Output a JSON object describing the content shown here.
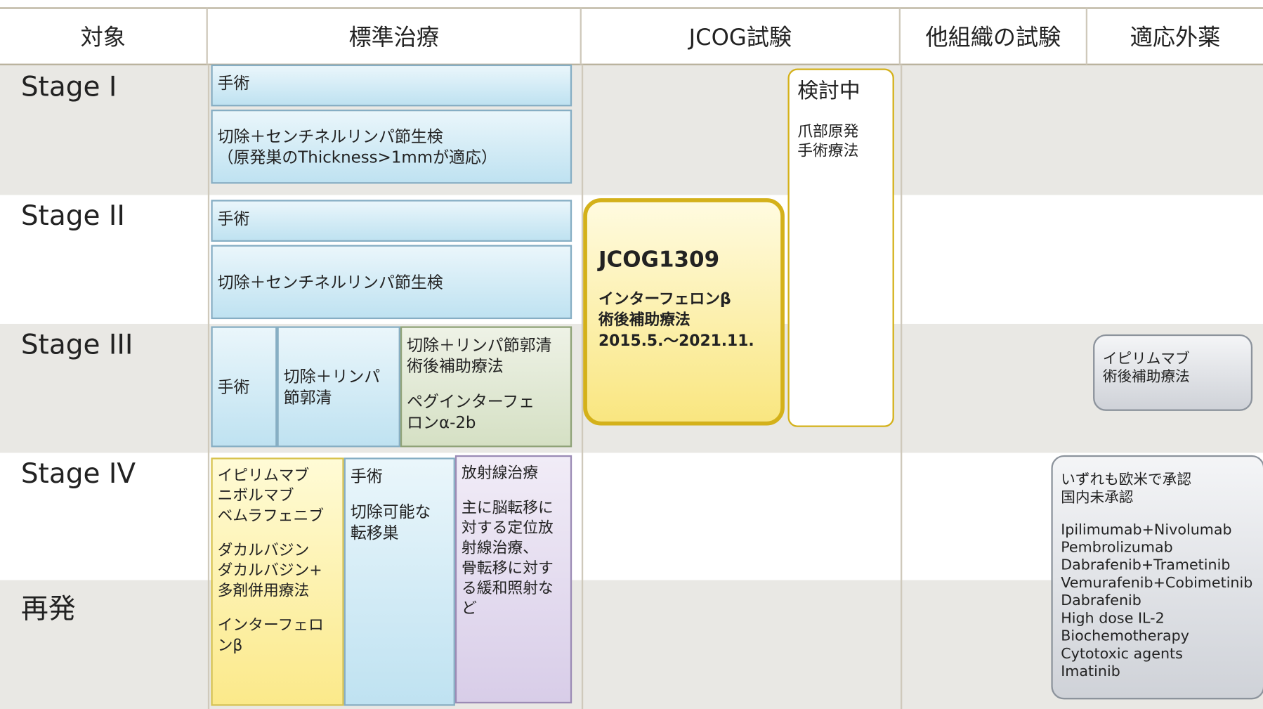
{
  "header": [
    "対象",
    "標準治療",
    "JCOG試験",
    "他組織の試験",
    "適応外薬"
  ],
  "stages": [
    "Stage I",
    "Stage II",
    "Stage III",
    "Stage IV",
    "再発"
  ],
  "boxes": [
    {
      "paragraphs": [
        [
          "手術"
        ]
      ]
    },
    {
      "paragraphs": [
        [
          "切除＋センチネルリンパ節生検",
          "（原発巣のThickness>1mmが適応）"
        ]
      ]
    },
    {
      "paragraphs": [
        [
          "手術"
        ]
      ]
    },
    {
      "paragraphs": [
        [
          "切除＋センチネルリンパ節生検"
        ]
      ]
    },
    {
      "paragraphs": [
        [
          "手術"
        ]
      ]
    },
    {
      "paragraphs": [
        [
          "切除＋リンパ",
          "節郭清"
        ]
      ]
    },
    {
      "paragraphs": [
        [
          "切除＋リンパ節郭清",
          "術後補助療法"
        ],
        [
          "ペグインターフェ",
          "ロンα-2b"
        ]
      ]
    },
    {
      "paragraphs": [
        [
          "イピリムマブ",
          "ニボルマブ",
          "ベムラフェニブ"
        ],
        [
          "ダカルバジン",
          "ダカルバジン+",
          "多剤併用療法"
        ],
        [
          "インターフェロ",
          "ンβ"
        ]
      ]
    },
    {
      "paragraphs": [
        [
          "手術"
        ],
        [
          "切除可能な",
          "転移巣"
        ]
      ]
    },
    {
      "paragraphs": [
        [
          "放射線治療"
        ],
        [
          "主に脳転移に",
          "対する定位放",
          "射線治療、",
          "骨転移に対す",
          "る緩和照射な",
          "ど"
        ]
      ]
    },
    {
      "paragraphs": [
        [
          "JCOG1309"
        ],
        [
          "インターフェロンβ",
          "術後補助療法",
          "2015.5.～2021.11."
        ]
      ]
    },
    {
      "paragraphs": [
        [
          "検討中"
        ],
        [
          "爪部原発",
          "手術療法"
        ]
      ]
    },
    {
      "paragraphs": [
        [
          "イピリムマブ",
          "術後補助療法"
        ]
      ]
    },
    {
      "paragraphs": [
        [
          "いずれも欧米で承認",
          "国内未承認"
        ],
        [
          "Ipilimumab+Nivolumab",
          "Pembrolizumab",
          "Dabrafenib+Trametinib",
          "Vemurafenib+Cobimetinib",
          "Dabrafenib",
          "High dose IL-2",
          "Biochemotherapy",
          "Cytotoxic agents",
          "Imatinib"
        ]
      ]
    }
  ]
}
